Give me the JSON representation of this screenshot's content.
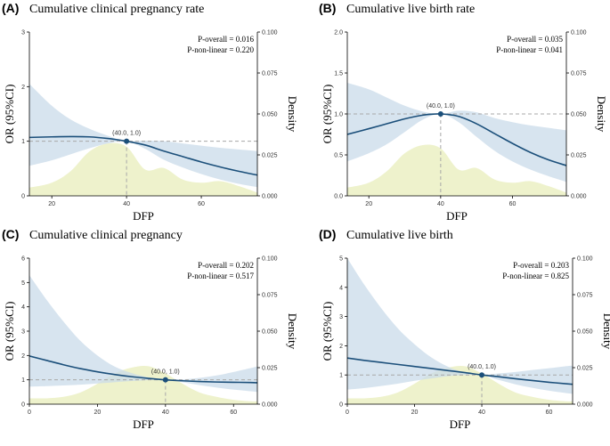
{
  "colors": {
    "band": "#c9dbe9",
    "density": "#eef2cc",
    "curve": "#1b4f7a",
    "ref_line": "#a8a8a8",
    "point": "#1b4f7a"
  },
  "chart_data": [
    {
      "type": "line",
      "panel_label": "(A)",
      "title": "Cumulative clinical pregnancy rate",
      "xlabel": "DFP",
      "ylabel": "OR (95%CI)",
      "y2label": "Density",
      "xlim": [
        14,
        75
      ],
      "ylim": [
        0,
        3
      ],
      "y2lim": [
        0,
        0.1
      ],
      "xticks": [
        20,
        40,
        60
      ],
      "yticks": [
        0,
        1,
        2,
        3
      ],
      "y2ticks": [
        "0.000",
        "0.025",
        "0.050",
        "0.075",
        "0.100"
      ],
      "p_overall": "P-overall = 0.016",
      "p_nonlinear": "P-non-linear = 0.220",
      "ref_point_label": "(40.0, 1.0)",
      "ref_point": [
        40,
        1.0
      ],
      "series": [
        {
          "name": "OR",
          "x": [
            14,
            20,
            25,
            30,
            35,
            40,
            45,
            50,
            55,
            60,
            65,
            70,
            75
          ],
          "values": [
            1.07,
            1.08,
            1.085,
            1.08,
            1.05,
            1.0,
            0.93,
            0.82,
            0.72,
            0.62,
            0.53,
            0.45,
            0.38
          ]
        },
        {
          "name": "Upper 95% CI",
          "x": [
            14,
            20,
            25,
            30,
            35,
            40,
            45,
            50,
            55,
            60,
            65,
            70,
            75
          ],
          "values": [
            2.05,
            1.65,
            1.4,
            1.23,
            1.1,
            1.0,
            1.01,
            1.0,
            0.96,
            0.92,
            0.88,
            0.85,
            0.82
          ]
        },
        {
          "name": "Lower 95% CI",
          "x": [
            14,
            20,
            25,
            30,
            35,
            40,
            45,
            50,
            55,
            60,
            65,
            70,
            75
          ],
          "values": [
            0.55,
            0.65,
            0.76,
            0.87,
            0.96,
            1.0,
            0.86,
            0.66,
            0.52,
            0.4,
            0.3,
            0.22,
            0.16
          ]
        },
        {
          "name": "Density",
          "x": [
            14,
            20,
            25,
            30,
            35,
            40,
            45,
            50,
            55,
            60,
            65,
            70,
            75
          ],
          "values": [
            0.005,
            0.008,
            0.015,
            0.027,
            0.032,
            0.03,
            0.016,
            0.017,
            0.01,
            0.008,
            0.009,
            0.006,
            0.002
          ]
        }
      ]
    },
    {
      "type": "line",
      "panel_label": "(B)",
      "title": "Cumulative live birth rate",
      "xlabel": "DFP",
      "ylabel": "OR (95%CI)",
      "y2label": "Density",
      "xlim": [
        14,
        75
      ],
      "ylim": [
        0,
        2.0
      ],
      "y2lim": [
        0,
        0.1
      ],
      "xticks": [
        20,
        40,
        60
      ],
      "yticks": [
        "0.0",
        "0.5",
        "1.0",
        "1.5",
        "2.0"
      ],
      "y2ticks": [
        "0.000",
        "0.025",
        "0.050",
        "0.075",
        "0.100"
      ],
      "p_overall": "P-overall = 0.035",
      "p_nonlinear": "P-non-linear = 0.041",
      "ref_point_label": "(40.0, 1.0)",
      "ref_point": [
        40,
        1.0
      ],
      "series": [
        {
          "name": "OR",
          "x": [
            14,
            20,
            25,
            30,
            35,
            40,
            45,
            50,
            55,
            60,
            65,
            70,
            75
          ],
          "values": [
            0.75,
            0.82,
            0.88,
            0.94,
            0.985,
            1.0,
            0.97,
            0.88,
            0.76,
            0.64,
            0.53,
            0.44,
            0.37
          ]
        },
        {
          "name": "Upper 95% CI",
          "x": [
            14,
            20,
            25,
            30,
            35,
            40,
            45,
            50,
            55,
            60,
            65,
            70,
            75
          ],
          "values": [
            1.38,
            1.3,
            1.2,
            1.1,
            1.03,
            1.0,
            1.04,
            1.02,
            0.95,
            0.9,
            0.86,
            0.83,
            0.8
          ]
        },
        {
          "name": "Lower 95% CI",
          "x": [
            14,
            20,
            25,
            30,
            35,
            40,
            45,
            50,
            55,
            60,
            65,
            70,
            75
          ],
          "values": [
            0.42,
            0.52,
            0.63,
            0.78,
            0.93,
            1.0,
            0.9,
            0.72,
            0.55,
            0.42,
            0.32,
            0.24,
            0.17
          ]
        },
        {
          "name": "Density",
          "x": [
            14,
            20,
            25,
            30,
            35,
            40,
            45,
            50,
            55,
            60,
            65,
            70,
            75
          ],
          "values": [
            0.005,
            0.008,
            0.015,
            0.026,
            0.031,
            0.029,
            0.016,
            0.017,
            0.01,
            0.008,
            0.009,
            0.006,
            0.002
          ]
        }
      ]
    },
    {
      "type": "line",
      "panel_label": "(C)",
      "title": "Cumulative clinical pregnancy",
      "xlabel": "DFP",
      "ylabel": "OR (95%CI)",
      "y2label": "Density",
      "xlim": [
        0,
        67
      ],
      "ylim": [
        0,
        6
      ],
      "y2lim": [
        0,
        0.1
      ],
      "xticks": [
        0,
        20,
        40,
        60
      ],
      "yticks": [
        0,
        1,
        2,
        3,
        4,
        5,
        6
      ],
      "y2ticks": [
        "0.000",
        "0.025",
        "0.050",
        "0.075",
        "0.100"
      ],
      "p_overall": "P-overall = 0.202",
      "p_nonlinear": "P-non-linear = 0.517",
      "ref_point_label": "(40.0, 1.0)",
      "ref_point": [
        40,
        1.0
      ],
      "series": [
        {
          "name": "OR",
          "x": [
            0,
            5,
            10,
            15,
            20,
            25,
            30,
            35,
            40,
            45,
            50,
            55,
            60,
            65,
            67
          ],
          "values": [
            1.98,
            1.8,
            1.62,
            1.46,
            1.33,
            1.22,
            1.13,
            1.06,
            1.0,
            0.96,
            0.93,
            0.91,
            0.9,
            0.89,
            0.88
          ]
        },
        {
          "name": "Upper 95% CI",
          "x": [
            0,
            5,
            10,
            15,
            20,
            25,
            30,
            35,
            40,
            45,
            50,
            55,
            60,
            65,
            67
          ],
          "values": [
            5.3,
            4.3,
            3.4,
            2.6,
            2.0,
            1.55,
            1.28,
            1.1,
            1.0,
            1.02,
            1.08,
            1.18,
            1.32,
            1.48,
            1.55
          ]
        },
        {
          "name": "Lower 95% CI",
          "x": [
            0,
            5,
            10,
            15,
            20,
            25,
            30,
            35,
            40,
            45,
            50,
            55,
            60,
            65,
            67
          ],
          "values": [
            0.72,
            0.74,
            0.77,
            0.8,
            0.85,
            0.9,
            0.95,
            0.99,
            1.0,
            0.9,
            0.78,
            0.68,
            0.6,
            0.53,
            0.5
          ]
        },
        {
          "name": "Density",
          "x": [
            0,
            5,
            10,
            15,
            20,
            25,
            30,
            35,
            40,
            45,
            50,
            55,
            60,
            65,
            67
          ],
          "values": [
            0.004,
            0.004,
            0.005,
            0.008,
            0.014,
            0.021,
            0.025,
            0.026,
            0.021,
            0.014,
            0.008,
            0.005,
            0.003,
            0.002,
            0.002
          ]
        }
      ]
    },
    {
      "type": "line",
      "panel_label": "(D)",
      "title": "Cumulative live birth",
      "xlabel": "DFP",
      "ylabel": "OR (95%CI)",
      "y2label": "Density",
      "xlim": [
        0,
        67
      ],
      "ylim": [
        0,
        5
      ],
      "y2lim": [
        0,
        0.1
      ],
      "xticks": [
        0,
        20,
        40,
        60
      ],
      "yticks": [
        0,
        1,
        2,
        3,
        4,
        5
      ],
      "y2ticks": [
        "0.000",
        "0.025",
        "0.050",
        "0.075",
        "0.100"
      ],
      "p_overall": "P-overall = 0.203",
      "p_nonlinear": "P-non-linear = 0.825",
      "ref_point_label": "(40.0, 1.0)",
      "ref_point": [
        40,
        1.0
      ],
      "series": [
        {
          "name": "OR",
          "x": [
            0,
            5,
            10,
            15,
            20,
            25,
            30,
            35,
            40,
            45,
            50,
            55,
            60,
            65,
            67
          ],
          "values": [
            1.58,
            1.5,
            1.43,
            1.36,
            1.29,
            1.22,
            1.15,
            1.08,
            1.0,
            0.94,
            0.87,
            0.81,
            0.75,
            0.7,
            0.68
          ]
        },
        {
          "name": "Upper 95% CI",
          "x": [
            0,
            5,
            10,
            15,
            20,
            25,
            30,
            35,
            40,
            45,
            50,
            55,
            60,
            65,
            67
          ],
          "values": [
            5.0,
            4.1,
            3.3,
            2.6,
            2.05,
            1.6,
            1.28,
            1.08,
            1.0,
            1.05,
            1.1,
            1.17,
            1.23,
            1.3,
            1.32
          ]
        },
        {
          "name": "Lower 95% CI",
          "x": [
            0,
            5,
            10,
            15,
            20,
            25,
            30,
            35,
            40,
            45,
            50,
            55,
            60,
            65,
            67
          ],
          "values": [
            0.5,
            0.55,
            0.62,
            0.7,
            0.8,
            0.88,
            0.96,
            1.0,
            1.0,
            0.83,
            0.68,
            0.56,
            0.46,
            0.38,
            0.35
          ]
        },
        {
          "name": "Density",
          "x": [
            0,
            5,
            10,
            15,
            20,
            25,
            30,
            35,
            40,
            45,
            50,
            55,
            60,
            65,
            67
          ],
          "values": [
            0.004,
            0.004,
            0.005,
            0.008,
            0.014,
            0.021,
            0.025,
            0.026,
            0.021,
            0.014,
            0.008,
            0.005,
            0.003,
            0.002,
            0.002
          ]
        }
      ]
    }
  ]
}
